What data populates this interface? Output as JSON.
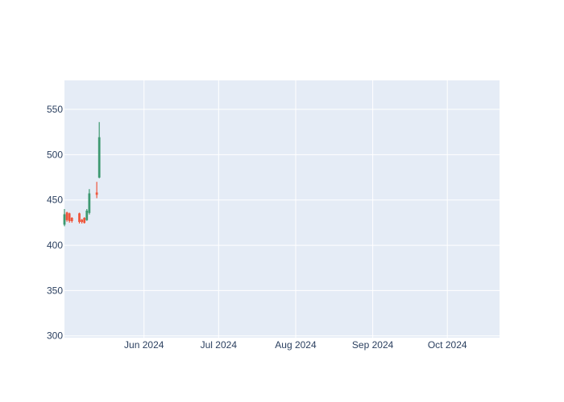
{
  "chart_data": {
    "type": "candlestick",
    "title": "",
    "xlabel": "",
    "ylabel": "",
    "ylim": [
      298,
      582
    ],
    "xlim": [
      "2024-04-30",
      "2024-10-22"
    ],
    "y_ticks": [
      300,
      350,
      400,
      450,
      500,
      550
    ],
    "y_tick_labels": [
      "300",
      "350",
      "400",
      "450",
      "500",
      "550"
    ],
    "x_ticks": [
      "2024-06-01",
      "2024-07-01",
      "2024-08-01",
      "2024-09-01",
      "2024-10-01"
    ],
    "x_tick_labels": [
      "Jun 2024",
      "Jul 2024",
      "Aug 2024",
      "Sep 2024",
      "Oct 2024"
    ],
    "grid": true,
    "colors": {
      "increasing": "#3D9970",
      "decreasing": "#EF553B",
      "plot_background": "#E5ECF6",
      "grid": "#FFFFFF",
      "tick_text": "#2A3F5F"
    },
    "candles": [
      {
        "date": "2024-04-30",
        "open": 423,
        "high": 440,
        "low": 421,
        "close": 434
      },
      {
        "date": "2024-05-01",
        "open": 436,
        "high": 437,
        "low": 426,
        "close": 428
      },
      {
        "date": "2024-05-02",
        "open": 435,
        "high": 436,
        "low": 425,
        "close": 427
      },
      {
        "date": "2024-05-03",
        "open": 430,
        "high": 431,
        "low": 425,
        "close": 427
      },
      {
        "date": "2024-05-06",
        "open": 435,
        "high": 436,
        "low": 424,
        "close": 426
      },
      {
        "date": "2024-05-07",
        "open": 428,
        "high": 429,
        "low": 424,
        "close": 426
      },
      {
        "date": "2024-05-08",
        "open": 430,
        "high": 431,
        "low": 424,
        "close": 425
      },
      {
        "date": "2024-05-09",
        "open": 428,
        "high": 440,
        "low": 427,
        "close": 438
      },
      {
        "date": "2024-05-10",
        "open": 436,
        "high": 462,
        "low": 434,
        "close": 457
      },
      {
        "date": "2024-05-13",
        "open": 458,
        "high": 470,
        "low": 452,
        "close": 456
      },
      {
        "date": "2024-05-14",
        "open": 475,
        "high": 536,
        "low": 474,
        "close": 519
      }
    ]
  }
}
